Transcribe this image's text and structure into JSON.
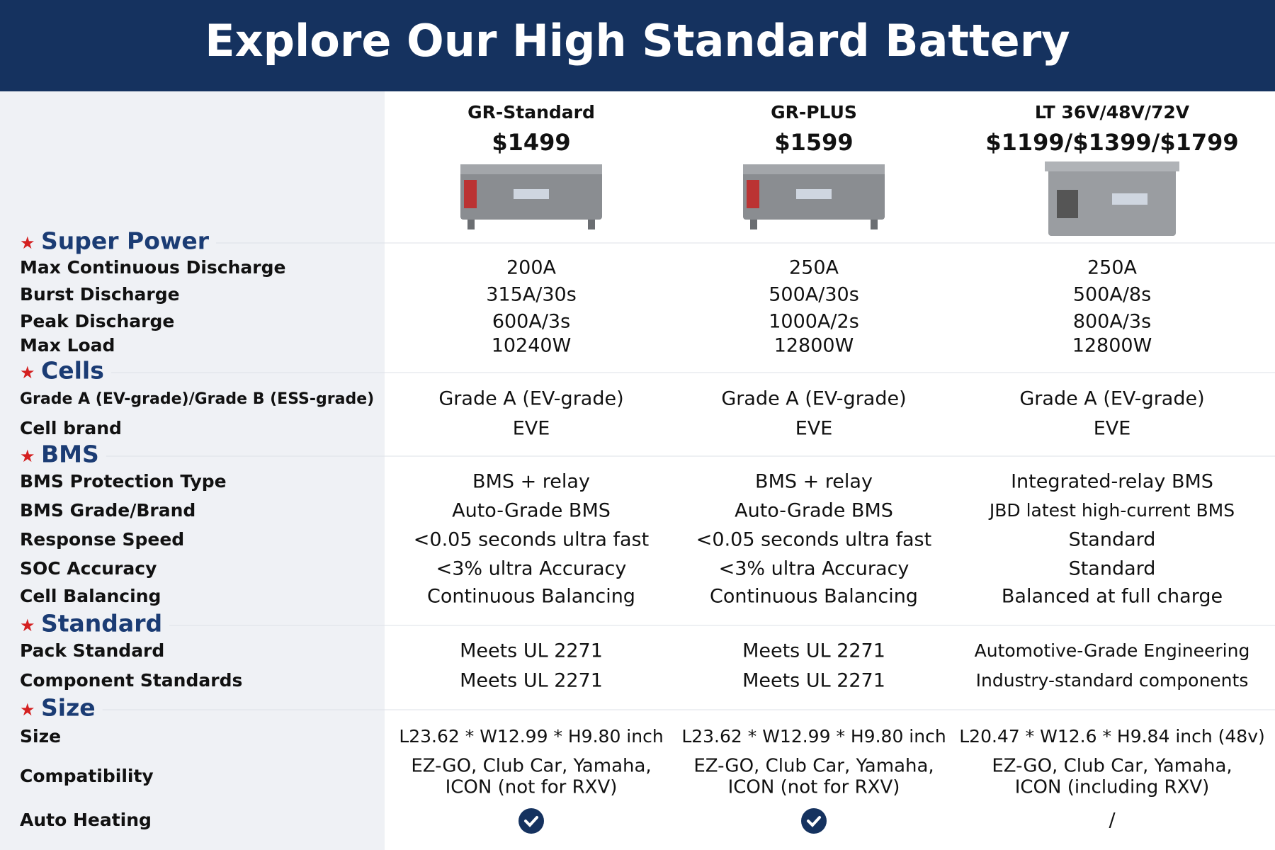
{
  "header": {
    "title": "Explore Our High Standard Battery"
  },
  "products": [
    {
      "name": "GR-Standard",
      "price": "$1499"
    },
    {
      "name": "GR-PLUS",
      "price": "$1599"
    },
    {
      "name": "LT 36V/48V/72V",
      "price": "$1199/$1399/$1799"
    }
  ],
  "sections": [
    {
      "title": "Super Power",
      "rows": [
        {
          "label": "Max Continuous Discharge",
          "values": [
            "200A",
            "250A",
            "250A"
          ]
        },
        {
          "label": "Burst Discharge",
          "values": [
            "315A/30s",
            "500A/30s",
            "500A/8s"
          ]
        },
        {
          "label": "Peak Discharge",
          "values": [
            "600A/3s",
            "1000A/2s",
            "800A/3s"
          ]
        },
        {
          "label": "Max Load",
          "values": [
            "10240W",
            "12800W",
            "12800W"
          ]
        }
      ]
    },
    {
      "title": "Cells",
      "rows": [
        {
          "label": "Grade A (EV-grade)/Grade B (ESS-grade)",
          "values": [
            "Grade A (EV-grade)",
            "Grade A (EV-grade)",
            "Grade A (EV-grade)"
          ]
        },
        {
          "label": "Cell brand",
          "values": [
            "EVE",
            "EVE",
            "EVE"
          ]
        }
      ]
    },
    {
      "title": "BMS",
      "rows": [
        {
          "label": "BMS Protection Type",
          "values": [
            "BMS + relay",
            "BMS + relay",
            "Integrated-relay BMS"
          ]
        },
        {
          "label": "BMS Grade/Brand",
          "values": [
            "Auto-Grade BMS",
            "Auto-Grade BMS",
            "JBD latest high-current BMS"
          ]
        },
        {
          "label": "Response Speed",
          "values": [
            "<0.05 seconds ultra fast",
            "<0.05 seconds ultra fast",
            "Standard"
          ]
        },
        {
          "label": "SOC Accuracy",
          "values": [
            "<3% ultra Accuracy",
            "<3% ultra Accuracy",
            "Standard"
          ]
        },
        {
          "label": "Cell Balancing",
          "values": [
            "Continuous Balancing",
            "Continuous Balancing",
            "Balanced at full charge"
          ]
        }
      ]
    },
    {
      "title": "Standard",
      "rows": [
        {
          "label": "Pack Standard",
          "values": [
            "Meets UL 2271",
            "Meets UL 2271",
            "Automotive-Grade Engineering"
          ]
        },
        {
          "label": "Component Standards",
          "values": [
            "Meets UL 2271",
            "Meets UL 2271",
            "Industry-standard components"
          ]
        }
      ]
    },
    {
      "title": "Size",
      "rows": [
        {
          "label": "Size",
          "values": [
            "L23.62 * W12.99 * H9.80 inch",
            "L23.62 * W12.99 * H9.80 inch",
            "L20.47 * W12.6 * H9.84 inch (48v)"
          ]
        },
        {
          "label": "Compatibility",
          "values": [
            [
              "EZ-GO, Club Car, Yamaha,",
              "ICON (not for RXV)"
            ],
            [
              "EZ-GO, Club Car, Yamaha,",
              "ICON (not for RXV)"
            ],
            [
              "EZ-GO, Club Car, Yamaha,",
              "ICON (including RXV)"
            ]
          ]
        },
        {
          "label": "Auto Heating",
          "values": [
            true,
            true,
            "/"
          ]
        }
      ]
    }
  ]
}
